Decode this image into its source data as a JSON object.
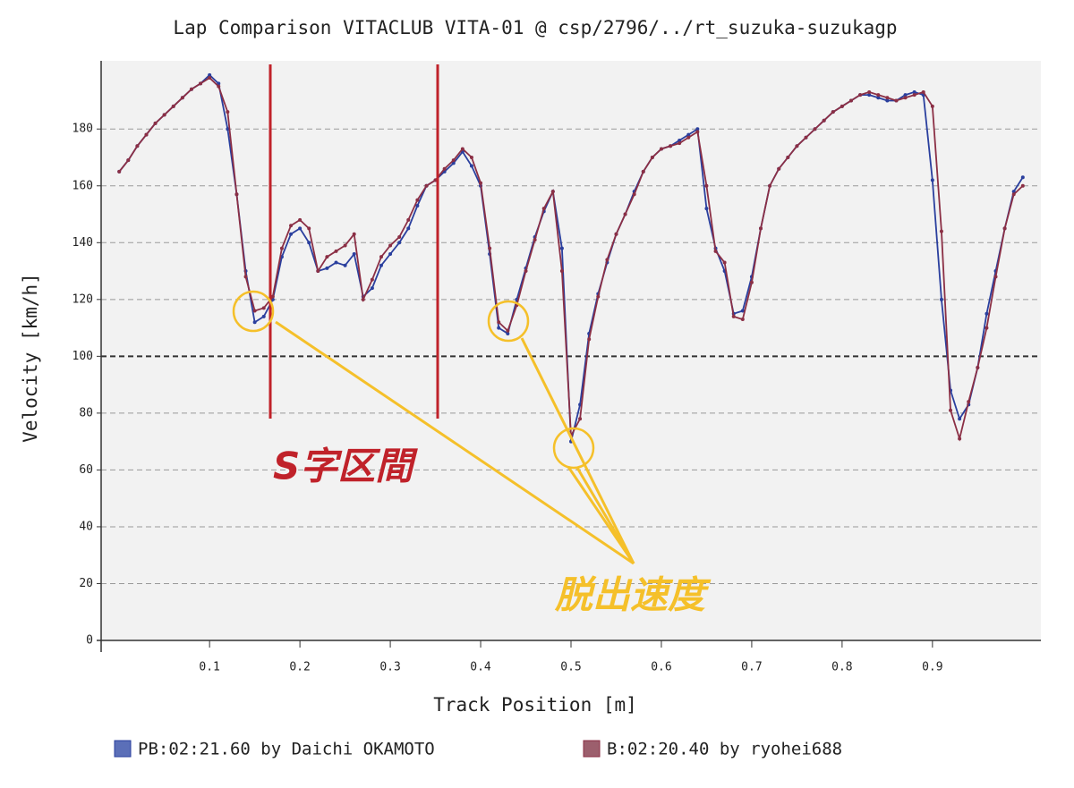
{
  "chart_data": {
    "type": "line",
    "title": "Lap Comparison VITACLUB VITA-01 @ csp/2796/../rt_suzuka-suzukagp",
    "x_label": "Track Position [m]",
    "y_label": "Velocity [km/h]",
    "x": [
      0,
      0.01,
      0.02,
      0.03,
      0.04,
      0.05,
      0.06,
      0.07,
      0.08,
      0.09,
      0.1,
      0.11,
      0.12,
      0.13,
      0.14,
      0.15,
      0.16,
      0.17,
      0.18,
      0.19,
      0.2,
      0.21,
      0.22,
      0.23,
      0.24,
      0.25,
      0.26,
      0.27,
      0.28,
      0.29,
      0.3,
      0.31,
      0.32,
      0.33,
      0.34,
      0.35,
      0.36,
      0.37,
      0.38,
      0.39,
      0.4,
      0.41,
      0.42,
      0.43,
      0.44,
      0.45,
      0.46,
      0.47,
      0.48,
      0.49,
      0.5,
      0.51,
      0.52,
      0.53,
      0.54,
      0.55,
      0.56,
      0.57,
      0.58,
      0.59,
      0.6,
      0.61,
      0.62,
      0.63,
      0.64,
      0.65,
      0.66,
      0.67,
      0.68,
      0.69,
      0.7,
      0.71,
      0.72,
      0.73,
      0.74,
      0.75,
      0.76,
      0.77,
      0.78,
      0.79,
      0.8,
      0.81,
      0.82,
      0.83,
      0.84,
      0.85,
      0.86,
      0.87,
      0.88,
      0.89,
      0.9,
      0.91,
      0.92,
      0.93,
      0.94,
      0.95,
      0.96,
      0.97,
      0.98,
      0.99,
      1
    ],
    "series": [
      {
        "name": "PB:02:21.60 by Daichi OKAMOTO",
        "color": "#2a3f9e",
        "legend_color": "#5b6fb8",
        "values": [
          165,
          169,
          174,
          178,
          182,
          185,
          188,
          191,
          194,
          196,
          199,
          196,
          180,
          157,
          130,
          112,
          114,
          120,
          135,
          143,
          145,
          140,
          130,
          131,
          133,
          132,
          136,
          121,
          124,
          132,
          136,
          140,
          145,
          153,
          160,
          162,
          165,
          168,
          172,
          167,
          160,
          136,
          110,
          108,
          120,
          131,
          142,
          151,
          158,
          138,
          70,
          83,
          108,
          122,
          133,
          143,
          150,
          158,
          165,
          170,
          173,
          174,
          176,
          178,
          180,
          152,
          138,
          130,
          115,
          116,
          128,
          145,
          160,
          166,
          170,
          174,
          177,
          180,
          183,
          186,
          188,
          190,
          192,
          192,
          191,
          190,
          190,
          192,
          193,
          192,
          162,
          120,
          88,
          78,
          83,
          96,
          115,
          130,
          145,
          158,
          163
        ]
      },
      {
        "name": "B:02:20.40 by ryohei688",
        "color": "#8b2f45",
        "legend_color": "#9c5f6d",
        "values": [
          165,
          169,
          174,
          178,
          182,
          185,
          188,
          191,
          194,
          196,
          198,
          195,
          186,
          157,
          128,
          116,
          117,
          121,
          138,
          146,
          148,
          145,
          130,
          135,
          137,
          139,
          143,
          120,
          127,
          135,
          139,
          142,
          148,
          155,
          160,
          162,
          166,
          169,
          173,
          170,
          161,
          138,
          112,
          109,
          118,
          130,
          141,
          152,
          158,
          130,
          72,
          78,
          106,
          121,
          134,
          143,
          150,
          157,
          165,
          170,
          173,
          174,
          175,
          177,
          179,
          160,
          137,
          133,
          114,
          113,
          126,
          145,
          160,
          166,
          170,
          174,
          177,
          180,
          183,
          186,
          188,
          190,
          192,
          193,
          192,
          191,
          190,
          191,
          192,
          193,
          188,
          144,
          81,
          71,
          84,
          96,
          110,
          128,
          145,
          157,
          160
        ]
      }
    ],
    "xlim": [
      -0.02,
      1.02
    ],
    "xticks": [
      0.1,
      0.2,
      0.3,
      0.4,
      0.5,
      0.6,
      0.7,
      0.8,
      0.9
    ],
    "ylim": [
      0,
      204
    ],
    "yticks": [
      0,
      20,
      40,
      60,
      80,
      100,
      120,
      140,
      160,
      180
    ],
    "emphasis_y": 100,
    "grid": true,
    "annotations": {
      "section": "S字区間",
      "exit_speed": "脱出速度"
    }
  }
}
